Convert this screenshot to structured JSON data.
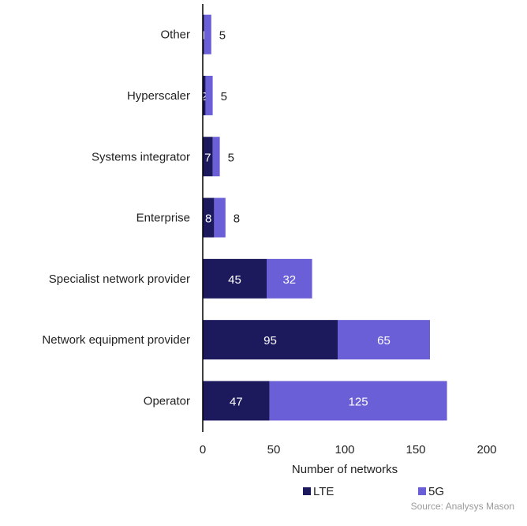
{
  "chart_data": {
    "type": "bar",
    "orientation": "horizontal",
    "stacked": true,
    "categories": [
      "Other",
      "Hyperscaler",
      "Systems integrator",
      "Enterprise",
      "Specialist network provider",
      "Network equipment provider",
      "Operator"
    ],
    "series": [
      {
        "name": "LTE",
        "values": [
          1,
          2,
          7,
          8,
          45,
          95,
          47
        ],
        "color": "#1c1a5c"
      },
      {
        "name": "5G",
        "values": [
          5,
          5,
          5,
          8,
          32,
          65,
          125
        ],
        "color": "#6a5fd6"
      }
    ],
    "xlabel": "Number of networks",
    "ylabel": "",
    "xlim": [
      0,
      200
    ],
    "xticks": [
      0,
      50,
      100,
      150,
      200
    ],
    "grid": false,
    "legend": "bottom",
    "source": "Source: Analysys Mason"
  }
}
